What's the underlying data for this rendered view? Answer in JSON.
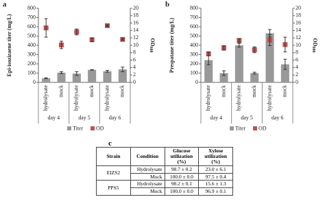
{
  "chart_data": [
    {
      "type": "bar",
      "panel": "a",
      "y_label": "Epi-isozizaene titer (mg/L)",
      "y2_label": "OD",
      "y2_label_sub": "600",
      "categories": [
        "hydrolysate",
        "mock",
        "hydrolysate",
        "mock",
        "hydrolysate",
        "mock"
      ],
      "groups": [
        "day 4",
        "day 5",
        "day 6"
      ],
      "series": [
        {
          "name": "Titer",
          "color": "#999999",
          "values": [
            45,
            105,
            95,
            135,
            120,
            140
          ],
          "errors": [
            5,
            10,
            20,
            3,
            10,
            25
          ]
        },
        {
          "name": "OD",
          "color": "#c0504d",
          "axis": "y2",
          "values": [
            14.7,
            10.1,
            13.6,
            11.5,
            15.3,
            11.6
          ],
          "errors": [
            2.5,
            1,
            0.8,
            0.5,
            0.2,
            0.2
          ]
        }
      ],
      "ylim": [
        0,
        800
      ],
      "yticks": [
        0,
        100,
        200,
        300,
        400,
        500,
        600,
        700,
        800
      ],
      "y2lim": [
        0,
        20
      ],
      "y2ticks": [
        0,
        2,
        4,
        6,
        8,
        10,
        12,
        14,
        16,
        18,
        20
      ],
      "grid": false
    },
    {
      "type": "bar",
      "panel": "b",
      "y_label": "Prespatane titer (mg/L)",
      "y2_label": "OD",
      "y2_label_sub": "600",
      "categories": [
        "hydrolysate",
        "mock",
        "hydrolysate",
        "mock",
        "hydrolysate",
        "mock"
      ],
      "groups": [
        "day 4",
        "day 5",
        "day 6"
      ],
      "series": [
        {
          "name": "Titer",
          "color": "#999999",
          "values": [
            240,
            100,
            400,
            100,
            530,
            195
          ],
          "errors": [
            50,
            25,
            20,
            10,
            40,
            55
          ]
        },
        {
          "name": "OD",
          "color": "#c0504d",
          "axis": "y2",
          "values": [
            7.7,
            9.3,
            11.3,
            8.8,
            11.4,
            10.2
          ],
          "errors": [
            0.5,
            0.6,
            0.5,
            0.8,
            1.5,
            2
          ]
        }
      ],
      "ylim": [
        0,
        800
      ],
      "yticks": [
        0,
        100,
        200,
        300,
        400,
        500,
        600,
        700,
        800
      ],
      "y2lim": [
        0,
        20
      ],
      "y2ticks": [
        0,
        2,
        4,
        6,
        8,
        10,
        12,
        14,
        16,
        18,
        20
      ],
      "grid": false
    }
  ],
  "table": {
    "panel": "c",
    "header": [
      "Strain",
      "Condition",
      "Glucose utilization (%)",
      "Xylose utilization (%)"
    ],
    "rows": [
      [
        "EIZS2",
        "Hydrolysate",
        "98.7 ± 0.2",
        "23.0 ± 6.1"
      ],
      [
        "",
        "Mock",
        "100.0 ± 0.0",
        "97.5 ± 0.4"
      ],
      [
        "PPS5",
        "Hydrolysate",
        "98.2 ± 0.1",
        "15.6 ± 1.3"
      ],
      [
        "",
        "Mock",
        "100.0 ± 0.0",
        "96.9 ± 0.1"
      ]
    ]
  }
}
